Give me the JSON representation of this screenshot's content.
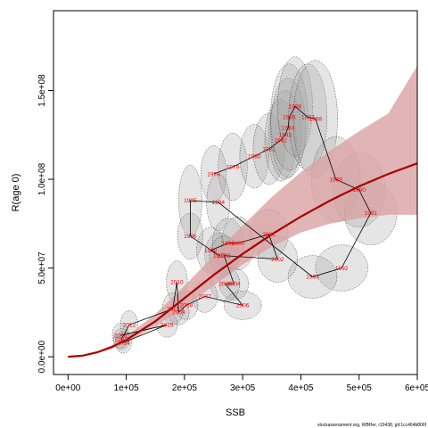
{
  "chart_data": {
    "type": "scatter",
    "title": "",
    "xlabel": "SSB",
    "ylabel": "R(age 0)",
    "xlim": [
      -25000,
      600000
    ],
    "ylim": [
      -10000000,
      195000000
    ],
    "x_ticks": [
      {
        "value": 0,
        "label": "0e+00"
      },
      {
        "value": 100000,
        "label": "1e+05"
      },
      {
        "value": 200000,
        "label": "2e+05"
      },
      {
        "value": 300000,
        "label": "3e+05"
      },
      {
        "value": 400000,
        "label": "4e+05"
      },
      {
        "value": 500000,
        "label": "5e+05"
      },
      {
        "value": 600000,
        "label": "6e+05"
      }
    ],
    "y_ticks": [
      {
        "value": 0,
        "label": "0.0e+00"
      },
      {
        "value": 50000000,
        "label": "5.0e+07"
      },
      {
        "value": 100000000,
        "label": "1.0e+08"
      },
      {
        "value": 150000000,
        "label": "1.5e+08"
      }
    ],
    "credit": "stockassessment.org, WBHer, r19438, git:1cc464b806f",
    "colors": {
      "curve": "#aa0000",
      "band": "#d9a3a3",
      "label": "#ff0000",
      "ellipse_fill": "#a0a0a0",
      "ellipse_stroke": "#333333",
      "path": "#000000"
    },
    "stock_recruitment_curve": {
      "x": [
        0,
        25000,
        50000,
        75000,
        100000,
        150000,
        200000,
        250000,
        300000,
        350000,
        400000,
        450000,
        500000,
        550000,
        600000
      ],
      "y": [
        0,
        600000,
        2500000,
        5500000,
        9500000,
        20000000,
        33000000,
        46000000,
        58000000,
        69000000,
        79000000,
        88000000,
        96000000,
        103000000,
        109000000
      ],
      "lower": [
        0,
        500000,
        2000000,
        4500000,
        8000000,
        17000000,
        28000000,
        40000000,
        52000000,
        62000000,
        70000000,
        75000000,
        78000000,
        80000000,
        80000000
      ],
      "upper": [
        0,
        700000,
        3000000,
        6500000,
        11500000,
        24000000,
        40000000,
        57000000,
        74000000,
        90000000,
        104000000,
        116000000,
        127000000,
        137000000,
        164000000
      ]
    },
    "series": [
      {
        "years": [
          "1978",
          "1979",
          "1980",
          "1981",
          "1982",
          "1983",
          "1984",
          "1985",
          "1986",
          "1987",
          "1988",
          "1989",
          "1990",
          "1991",
          "1992",
          "1993",
          "1994",
          "1995",
          "1996",
          "1997",
          "1998",
          "1999",
          "2000",
          "2001",
          "2002",
          "2003",
          "2004",
          "2005",
          "2006",
          "2007",
          "2008",
          "2009",
          "2010",
          "2011",
          "2012",
          "2013",
          "2014",
          "2015",
          "2016"
        ],
        "points": [
          {
            "year": "1978",
            "x": 250000,
            "y": 103000000,
            "rx": 22000,
            "ry": 16000000
          },
          {
            "year": "1979",
            "x": 283000,
            "y": 107000000,
            "rx": 25000,
            "ry": 19000000
          },
          {
            "year": "1980",
            "x": 320000,
            "y": 113000000,
            "rx": 25000,
            "ry": 18000000
          },
          {
            "year": "1981",
            "x": 345000,
            "y": 117000000,
            "rx": 27000,
            "ry": 20000000
          },
          {
            "year": "1982",
            "x": 365000,
            "y": 122000000,
            "rx": 27000,
            "ry": 23000000
          },
          {
            "year": "1983",
            "x": 373000,
            "y": 125000000,
            "rx": 28000,
            "ry": 25000000
          },
          {
            "year": "1984",
            "x": 378000,
            "y": 129000000,
            "rx": 30000,
            "ry": 28000000
          },
          {
            "year": "1985",
            "x": 380000,
            "y": 135000000,
            "rx": 32000,
            "ry": 30000000
          },
          {
            "year": "1986",
            "x": 390000,
            "y": 141000000,
            "rx": 30000,
            "ry": 28000000
          },
          {
            "year": "1987",
            "x": 412000,
            "y": 135000000,
            "rx": 33000,
            "ry": 30000000
          },
          {
            "year": "1988",
            "x": 425000,
            "y": 134000000,
            "rx": 38000,
            "ry": 33000000
          },
          {
            "year": "1989",
            "x": 460000,
            "y": 100000000,
            "rx": 42000,
            "ry": 24000000
          },
          {
            "year": "1990",
            "x": 500000,
            "y": 94000000,
            "rx": 45000,
            "ry": 21000000
          },
          {
            "year": "1991",
            "x": 520000,
            "y": 81000000,
            "rx": 45000,
            "ry": 18000000
          },
          {
            "year": "1992",
            "x": 470000,
            "y": 50000000,
            "rx": 45000,
            "ry": 13000000
          },
          {
            "year": "1993",
            "x": 420000,
            "y": 45000000,
            "rx": 42000,
            "ry": 12000000
          },
          {
            "year": "1994",
            "x": 258000,
            "y": 87000000,
            "rx": 20000,
            "ry": 16000000
          },
          {
            "year": "1995",
            "x": 210000,
            "y": 88000000,
            "rx": 20000,
            "ry": 20000000
          },
          {
            "year": "1996",
            "x": 210000,
            "y": 68000000,
            "rx": 22000,
            "ry": 13000000
          },
          {
            "year": "1997",
            "x": 260000,
            "y": 57000000,
            "rx": 25000,
            "ry": 13000000
          },
          {
            "year": "1998",
            "x": 245000,
            "y": 60000000,
            "rx": 24000,
            "ry": 13000000
          },
          {
            "year": "1999",
            "x": 275000,
            "y": 64000000,
            "rx": 27000,
            "ry": 14000000
          },
          {
            "year": "2000",
            "x": 292000,
            "y": 64000000,
            "rx": 28000,
            "ry": 15000000
          },
          {
            "year": "2001",
            "x": 345000,
            "y": 69000000,
            "rx": 33000,
            "ry": 14000000
          },
          {
            "year": "2002",
            "x": 360000,
            "y": 55000000,
            "rx": 34000,
            "ry": 13000000
          },
          {
            "year": "2003",
            "x": 268000,
            "y": 57000000,
            "rx": 25000,
            "ry": 11000000
          },
          {
            "year": "2004",
            "x": 285000,
            "y": 41000000,
            "rx": 25000,
            "ry": 9000000
          },
          {
            "year": "2005",
            "x": 270000,
            "y": 41000000,
            "rx": 25000,
            "ry": 10000000
          },
          {
            "year": "2006",
            "x": 300000,
            "y": 29000000,
            "rx": 32000,
            "ry": 8000000
          },
          {
            "year": "2007",
            "x": 235000,
            "y": 34000000,
            "rx": 22000,
            "ry": 9000000
          },
          {
            "year": "2008",
            "x": 203000,
            "y": 29000000,
            "rx": 20000,
            "ry": 8000000
          },
          {
            "year": "2009",
            "x": 190000,
            "y": 25000000,
            "rx": 18000,
            "ry": 7000000
          },
          {
            "year": "2010",
            "x": 187000,
            "y": 42000000,
            "rx": 18000,
            "ry": 12000000
          },
          {
            "year": "2011",
            "x": 180000,
            "y": 27000000,
            "rx": 18000,
            "ry": 9000000
          },
          {
            "year": "2012",
            "x": 105000,
            "y": 18000000,
            "rx": 15000,
            "ry": 8000000
          },
          {
            "year": "2013",
            "x": 92000,
            "y": 10000000,
            "rx": 14000,
            "ry": 6000000
          },
          {
            "year": "2014",
            "x": 95000,
            "y": 8000000,
            "rx": 14000,
            "ry": 6000000
          },
          {
            "year": "2015",
            "x": 170000,
            "y": 18000000,
            "rx": 18000,
            "ry": 7000000
          },
          {
            "year": "2016",
            "x": 90000,
            "y": 12000000,
            "rx": 14000,
            "ry": 7000000
          }
        ]
      }
    ]
  }
}
